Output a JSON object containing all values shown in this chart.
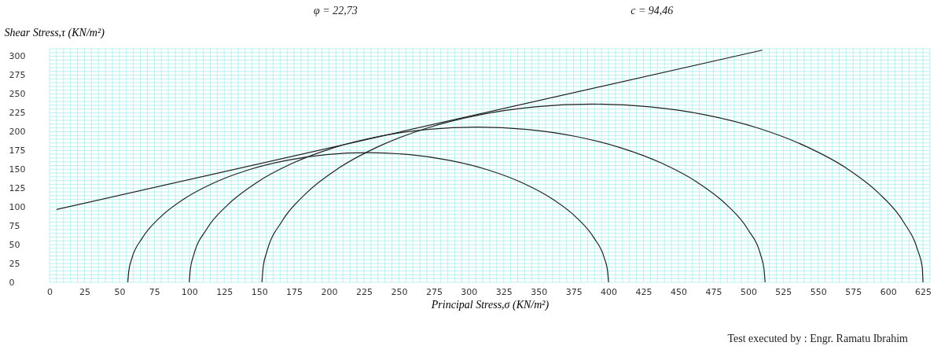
{
  "chart_data": {
    "type": "line",
    "xlabel": "Principal Stress,σ  (KN/m²)",
    "ylabel": "Shear Stress,τ  (KN/m²)",
    "annotations": [
      "φ =   22,73",
      "c =    94,46",
      "Test executed by  :     Engr. Ramatu Ibrahim"
    ],
    "xlim": [
      0,
      630
    ],
    "ylim": [
      0,
      310
    ],
    "xticks": [
      0,
      25,
      50,
      75,
      100,
      125,
      150,
      175,
      200,
      225,
      250,
      275,
      300,
      325,
      350,
      375,
      400,
      425,
      450,
      475,
      500,
      525,
      550,
      575,
      600,
      625
    ],
    "yticks": [
      0,
      25,
      50,
      75,
      100,
      125,
      150,
      175,
      200,
      225,
      250,
      275,
      300
    ],
    "grid": true,
    "marker": "none",
    "line_style": "solid",
    "series": [
      {
        "color": "#222222",
        "x": [
          56,
          56.7,
          58.6,
          66.4,
          79,
          96.2,
          117.4,
          142,
          169.2,
          198.1,
          228,
          257.9,
          286.8,
          314,
          338.6,
          359.8,
          377,
          389.6,
          397.4,
          399.3,
          400
        ],
        "values": [
          0,
          15,
          29.9,
          58.8,
          86,
          110.6,
          131.8,
          149,
          161.6,
          169.4,
          172,
          169.4,
          161.6,
          149,
          131.8,
          110.6,
          86,
          58.8,
          29.9,
          15,
          0
        ]
      },
      {
        "color": "#222222",
        "x": [
          100,
          100.8,
          103.1,
          112.4,
          127.6,
          148.2,
          173.6,
          203,
          235.5,
          270.2,
          306,
          341.8,
          376.5,
          409,
          438.4,
          463.8,
          484.4,
          499.6,
          508.9,
          511.2,
          512
        ],
        "values": [
          0,
          18,
          35.8,
          70.5,
          103,
          132.4,
          157.8,
          178.4,
          193.6,
          202.9,
          206,
          202.9,
          193.6,
          178.4,
          157.8,
          132.4,
          103,
          70.5,
          35.8,
          18,
          0
        ]
      },
      {
        "color": "#222222",
        "x": [
          152,
          152.9,
          155.6,
          166.3,
          183.7,
          207.3,
          236.5,
          270.3,
          307.6,
          347.4,
          388.5,
          429.6,
          469.4,
          506.8,
          540.3,
          569.7,
          593.3,
          610.8,
          621.5,
          624.4,
          625
        ],
        "values": [
          0,
          20.6,
          41.1,
          80.9,
          118.3,
          152,
          181.2,
          204.8,
          222.2,
          232.9,
          236.5,
          232.9,
          222.2,
          204.8,
          181.2,
          152,
          118.3,
          80.9,
          41.1,
          20.6,
          0
        ]
      },
      {
        "color": "#222222",
        "x": [
          5,
          510
        ],
        "values": [
          96.6,
          308.2
        ]
      }
    ]
  }
}
